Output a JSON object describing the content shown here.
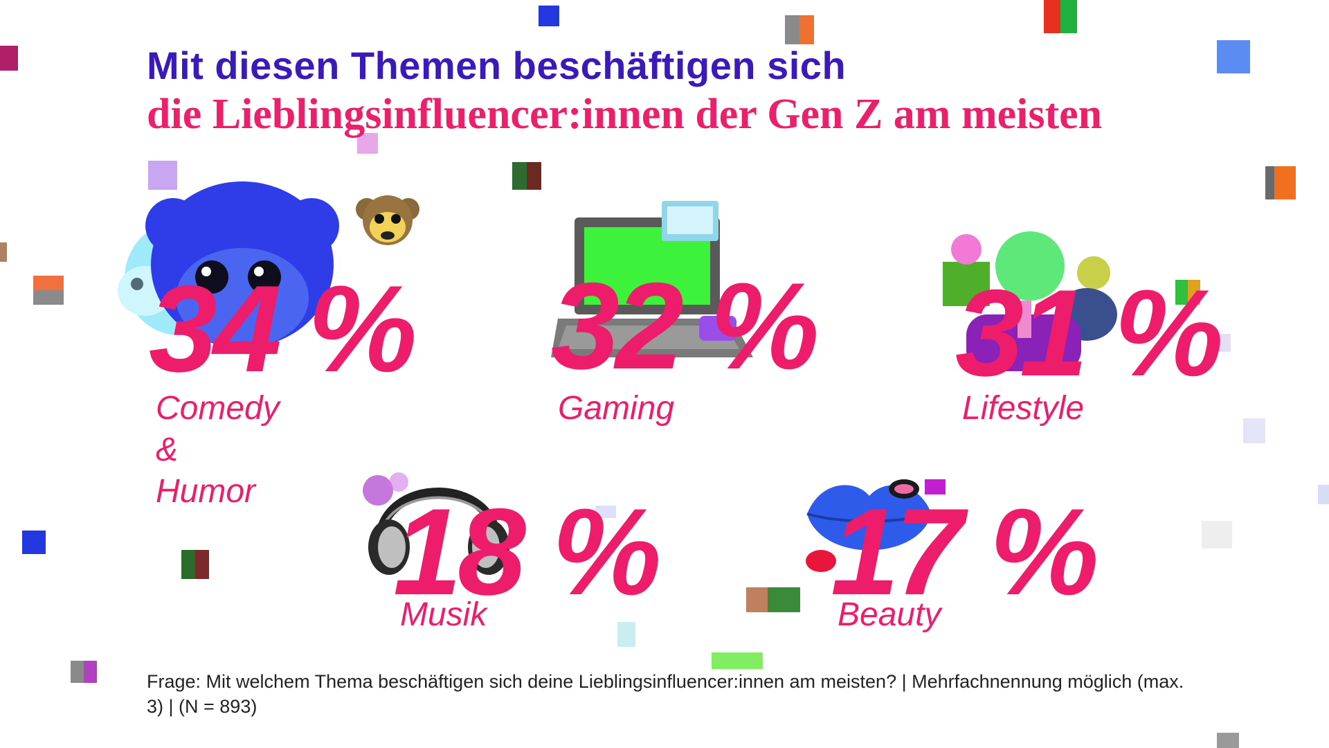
{
  "title": {
    "line1": "Mit diesen Themen beschäftigen sich",
    "line2": "die Lieblingsinfluencer:innen der Gen Z am meisten"
  },
  "chart_data": {
    "type": "table",
    "unit": "%",
    "categories": [
      "Comedy & Humor",
      "Gaming",
      "Lifestyle",
      "Musik",
      "Beauty"
    ],
    "values": [
      34,
      32,
      31,
      18,
      17
    ],
    "display_values": [
      "34 %",
      "32 %",
      "31 %",
      "18 %",
      "17 %"
    ]
  },
  "stats": [
    {
      "value": "34 %",
      "label": "Comedy &\nHumor",
      "icon": "monkey-icon"
    },
    {
      "value": "32 %",
      "label": "Gaming",
      "icon": "laptop-icon"
    },
    {
      "value": "31 %",
      "label": "Lifestyle",
      "icon": "lifestyle-icon"
    },
    {
      "value": "18 %",
      "label": "Musik",
      "icon": "headphones-icon"
    },
    {
      "value": "17 %",
      "label": "Beauty",
      "icon": "lips-icon"
    }
  ],
  "footer": "Frage: Mit welchem Thema beschäftigen sich deine Lieblingsinfluencer:innen am meisten? | Mehrfachnennung möglich (max. 3) | (N = 893)",
  "colors": {
    "title_primary": "#3a1ab8",
    "accent": "#ee1d6c",
    "monkey": "#2f3de8",
    "laptop_screen": "#3df23a",
    "headphones": "#222222",
    "lips": "#2f5bea"
  }
}
